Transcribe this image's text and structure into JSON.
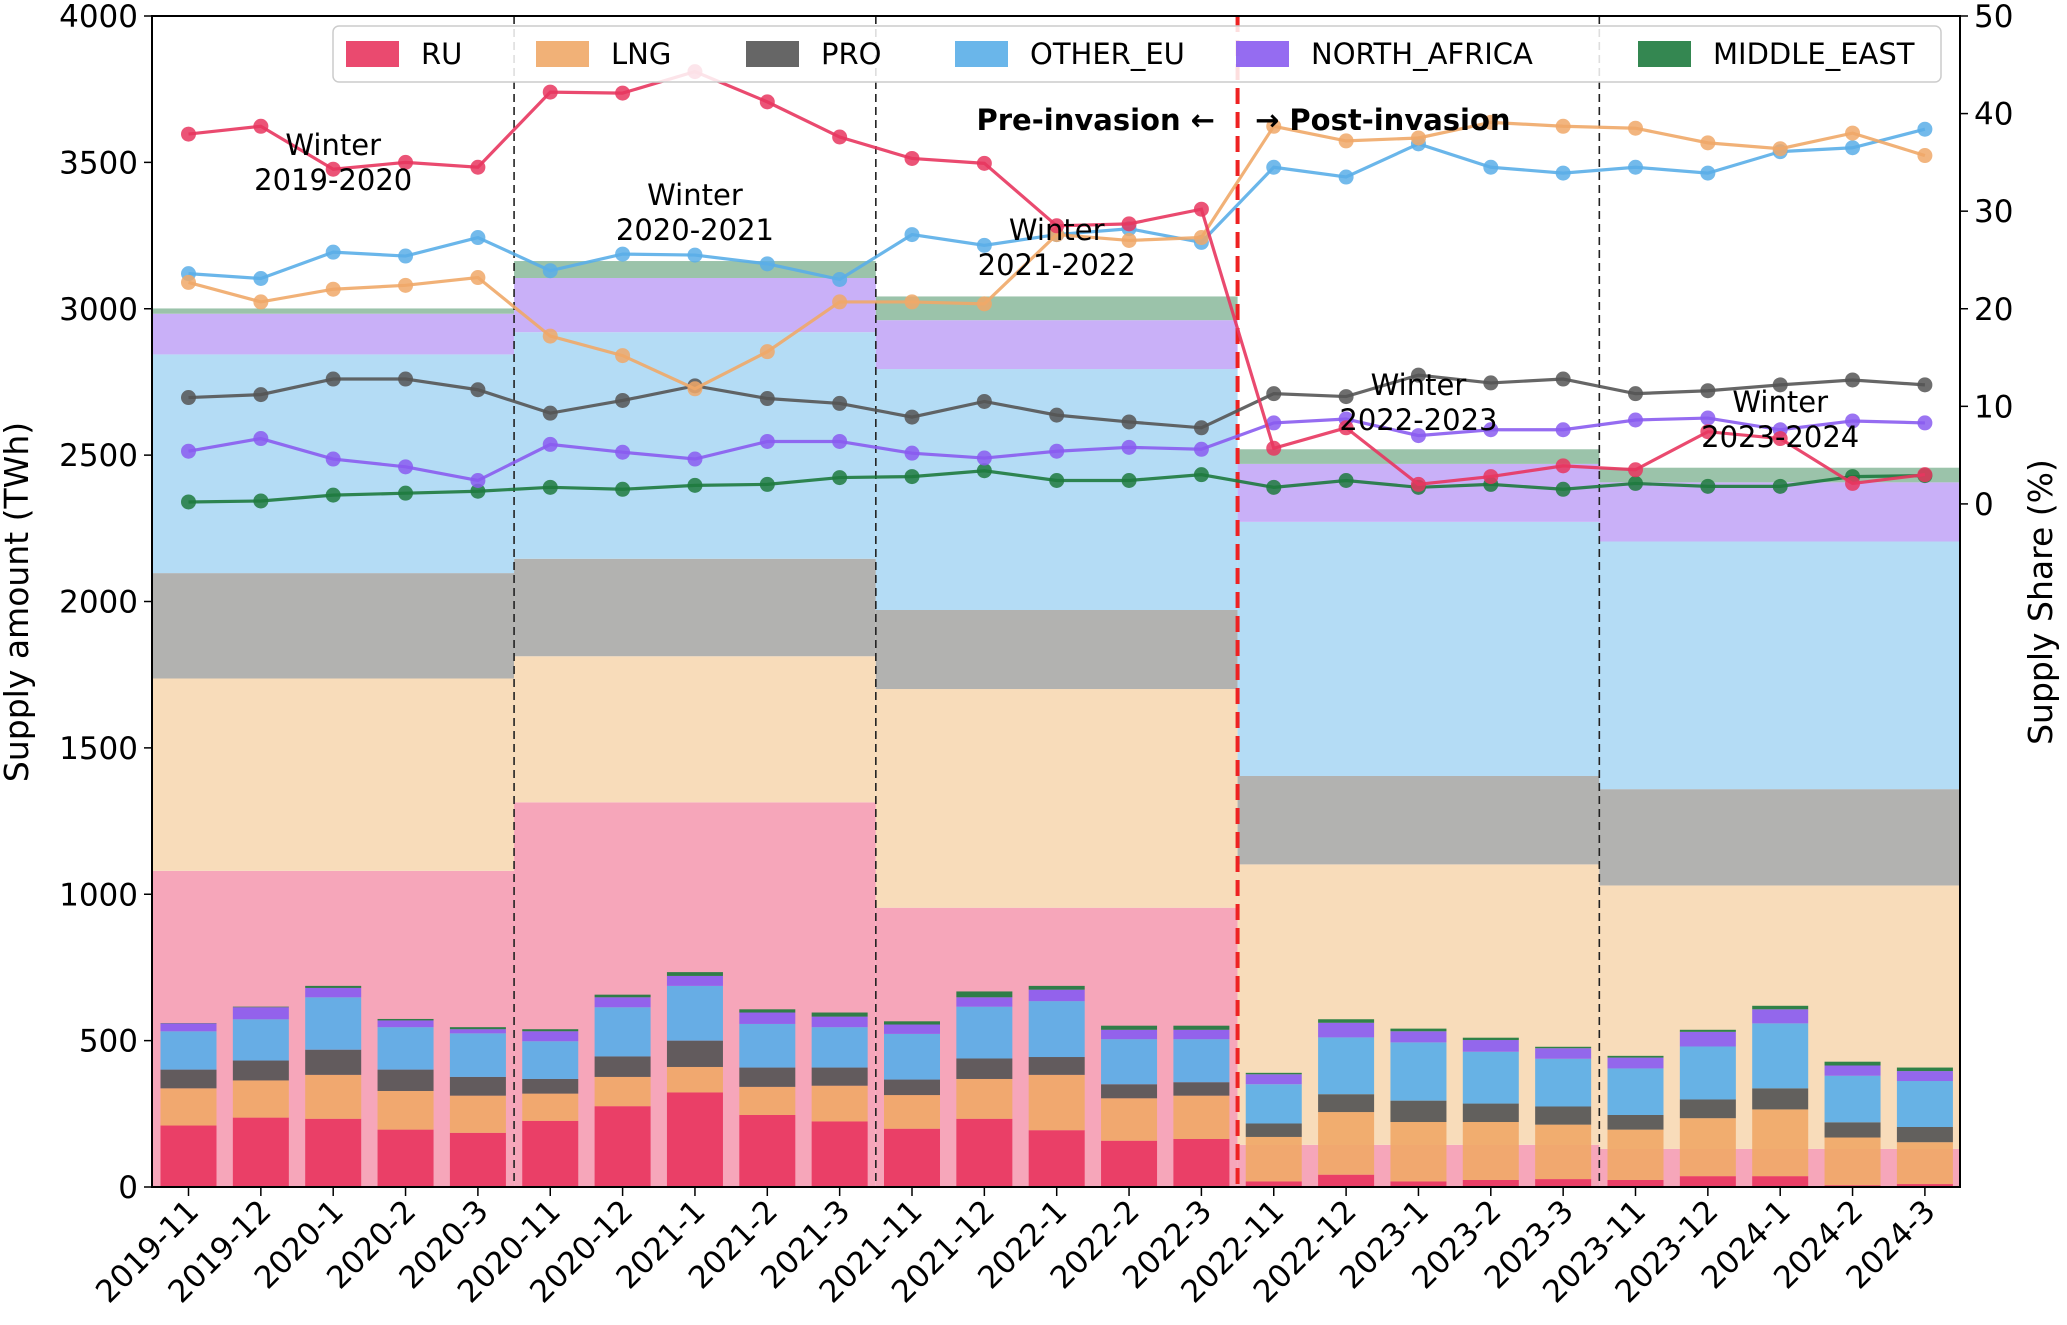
{
  "chart_data": {
    "type": "bar",
    "title": "",
    "xlabel": "",
    "ylabel": "Supply amount (TWh)",
    "y2label": "Supply Share (%)",
    "ylim": [
      0,
      4000
    ],
    "y2lim": [
      -70,
      50
    ],
    "yticks": [
      0,
      500,
      1000,
      1500,
      2000,
      2500,
      3000,
      3500,
      4000
    ],
    "y2ticks": [
      0,
      10,
      20,
      30,
      40,
      50
    ],
    "legend_position": "top",
    "categories": [
      "2019-11",
      "2019-12",
      "2020-1",
      "2020-2",
      "2020-3",
      "2020-11",
      "2020-12",
      "2021-1",
      "2021-2",
      "2021-3",
      "2021-11",
      "2021-12",
      "2022-1",
      "2022-2",
      "2022-3",
      "2022-11",
      "2022-12",
      "2023-1",
      "2023-2",
      "2023-3",
      "2023-11",
      "2023-12",
      "2024-1",
      "2024-2",
      "2024-3"
    ],
    "colors": {
      "RU": "#e8365f",
      "LNG": "#f0a868",
      "PRO": "#555555",
      "OTHER_EU": "#5aaee8",
      "NORTH_AFRICA": "#8a5cf0",
      "MIDDLE_EAST": "#1e7a3e"
    },
    "band_colors": {
      "RU": "#f6a6ba",
      "LNG": "#f8dcba",
      "PRO": "#b2b2b0",
      "OTHER_EU": "#b4dcf5",
      "NORTH_AFRICA": "#c9b0f8",
      "MIDDLE_EAST": "#9bc3aa"
    },
    "legend": [
      "RU",
      "LNG",
      "PRO",
      "OTHER_EU",
      "NORTH_AFRICA",
      "MIDDLE_EAST"
    ],
    "bar_series": [
      {
        "name": "RU",
        "values": [
          210,
          237,
          233,
          196,
          185,
          226,
          276,
          323,
          246,
          224,
          199,
          233,
          194,
          158,
          164,
          19,
          42,
          19,
          24,
          27,
          24,
          37,
          37,
          6,
          10
        ]
      },
      {
        "name": "LNG",
        "values": [
          127,
          127,
          150,
          132,
          127,
          93,
          100,
          87,
          96,
          122,
          115,
          136,
          189,
          145,
          148,
          152,
          214,
          203,
          198,
          186,
          172,
          198,
          228,
          163,
          143
        ]
      },
      {
        "name": "PRO",
        "values": [
          64,
          68,
          86,
          73,
          64,
          50,
          70,
          90,
          66,
          62,
          53,
          70,
          61,
          48,
          46,
          46,
          61,
          73,
          63,
          62,
          50,
          64,
          72,
          52,
          52
        ]
      },
      {
        "name": "OTHER_EU",
        "values": [
          131,
          141,
          179,
          145,
          149,
          129,
          168,
          187,
          149,
          138,
          156,
          177,
          191,
          154,
          147,
          134,
          194,
          199,
          177,
          163,
          159,
          181,
          222,
          159,
          157
        ]
      },
      {
        "name": "NORTH_AFRICA",
        "values": [
          27,
          41,
          32,
          23,
          14,
          34,
          34,
          34,
          39,
          36,
          32,
          32,
          39,
          32,
          32,
          34,
          50,
          38,
          40,
          36,
          37,
          50,
          48,
          35,
          34
        ]
      },
      {
        "name": "MIDDLE_EAST",
        "values": [
          1,
          2,
          7,
          5,
          7,
          7,
          9,
          13,
          11,
          14,
          11,
          20,
          13,
          14,
          14,
          5,
          12,
          9,
          8,
          5,
          6,
          7,
          12,
          13,
          12
        ]
      }
    ],
    "winters": [
      {
        "label_line1": "Winter",
        "label_line2": "2019-2020",
        "start": 0,
        "end": 4,
        "band_cumulative": {
          "RU": 1080,
          "LNG": 1737,
          "PRO": 2097,
          "OTHER_EU": 2844,
          "NORTH_AFRICA": 2983,
          "MIDDLE_EAST": 3001
        }
      },
      {
        "label_line1": "Winter",
        "label_line2": "2020-2021",
        "start": 5,
        "end": 9,
        "band_cumulative": {
          "RU": 1314,
          "LNG": 1813,
          "PRO": 2146,
          "OTHER_EU": 2920,
          "NORTH_AFRICA": 3105,
          "MIDDLE_EAST": 3163
        }
      },
      {
        "label_line1": "Winter",
        "label_line2": "2021-2022",
        "start": 10,
        "end": 14,
        "band_cumulative": {
          "RU": 954,
          "LNG": 1701,
          "PRO": 1971,
          "OTHER_EU": 2794,
          "NORTH_AFRICA": 2961,
          "MIDDLE_EAST": 3042
        }
      },
      {
        "label_line1": "Winter",
        "label_line2": "2022-2023",
        "start": 15,
        "end": 19,
        "band_cumulative": {
          "RU": 144,
          "LNG": 1102,
          "PRO": 1404,
          "OTHER_EU": 2272,
          "NORTH_AFRICA": 2470,
          "MIDDLE_EAST": 2520
        }
      },
      {
        "label_line1": "Winter",
        "label_line2": "2023-2024",
        "start": 20,
        "end": 24,
        "band_cumulative": {
          "RU": 130,
          "LNG": 1030,
          "PRO": 1359,
          "OTHER_EU": 2205,
          "NORTH_AFRICA": 2407,
          "MIDDLE_EAST": 2457
        }
      }
    ],
    "line_series_share_pct": [
      {
        "name": "RU",
        "values": [
          37.9,
          38.7,
          34.3,
          35.0,
          34.5,
          42.2,
          42.1,
          44.3,
          41.2,
          37.6,
          35.4,
          34.9,
          28.5,
          28.7,
          30.2,
          5.7,
          7.8,
          2.0,
          2.8,
          3.9,
          3.5,
          7.4,
          6.7,
          2.1,
          3.0
        ]
      },
      {
        "name": "LNG",
        "values": [
          22.7,
          20.7,
          22.0,
          22.4,
          23.2,
          17.2,
          15.2,
          11.8,
          15.6,
          20.7,
          20.7,
          20.5,
          27.6,
          27.0,
          27.3,
          38.7,
          37.2,
          37.5,
          39.1,
          38.7,
          38.5,
          37.0,
          36.4,
          38.0,
          35.7
        ]
      },
      {
        "name": "PRO",
        "values": [
          10.9,
          11.2,
          12.8,
          12.8,
          11.7,
          9.3,
          10.6,
          12.1,
          10.8,
          10.3,
          8.9,
          10.5,
          9.1,
          8.4,
          7.8,
          11.3,
          11.0,
          13.2,
          12.4,
          12.8,
          11.3,
          11.6,
          12.2,
          12.7,
          12.2
        ]
      },
      {
        "name": "OTHER_EU",
        "values": [
          23.6,
          23.1,
          25.8,
          25.4,
          27.3,
          23.9,
          25.6,
          25.5,
          24.6,
          23.0,
          27.6,
          26.5,
          27.6,
          28.2,
          26.8,
          34.5,
          33.5,
          36.9,
          34.5,
          33.9,
          34.5,
          33.9,
          36.1,
          36.5,
          38.4
        ]
      },
      {
        "name": "NORTH_AFRICA",
        "values": [
          5.4,
          6.7,
          4.6,
          3.8,
          2.4,
          6.1,
          5.3,
          4.6,
          6.4,
          6.4,
          5.2,
          4.7,
          5.4,
          5.8,
          5.6,
          8.3,
          8.7,
          7.0,
          7.6,
          7.6,
          8.6,
          8.8,
          7.6,
          8.5,
          8.3
        ]
      },
      {
        "name": "MIDDLE_EAST",
        "values": [
          0.2,
          0.3,
          0.9,
          1.1,
          1.3,
          1.7,
          1.5,
          1.9,
          2.0,
          2.7,
          2.8,
          3.4,
          2.4,
          2.4,
          3.0,
          1.7,
          2.4,
          1.7,
          2.0,
          1.5,
          2.1,
          1.8,
          1.8,
          2.8,
          2.9
        ]
      }
    ],
    "annotations": {
      "pre_invasion": "Pre-invasion ←",
      "post_invasion": "→ Post-invasion",
      "invasion_marker_color": "#ee2222"
    }
  }
}
